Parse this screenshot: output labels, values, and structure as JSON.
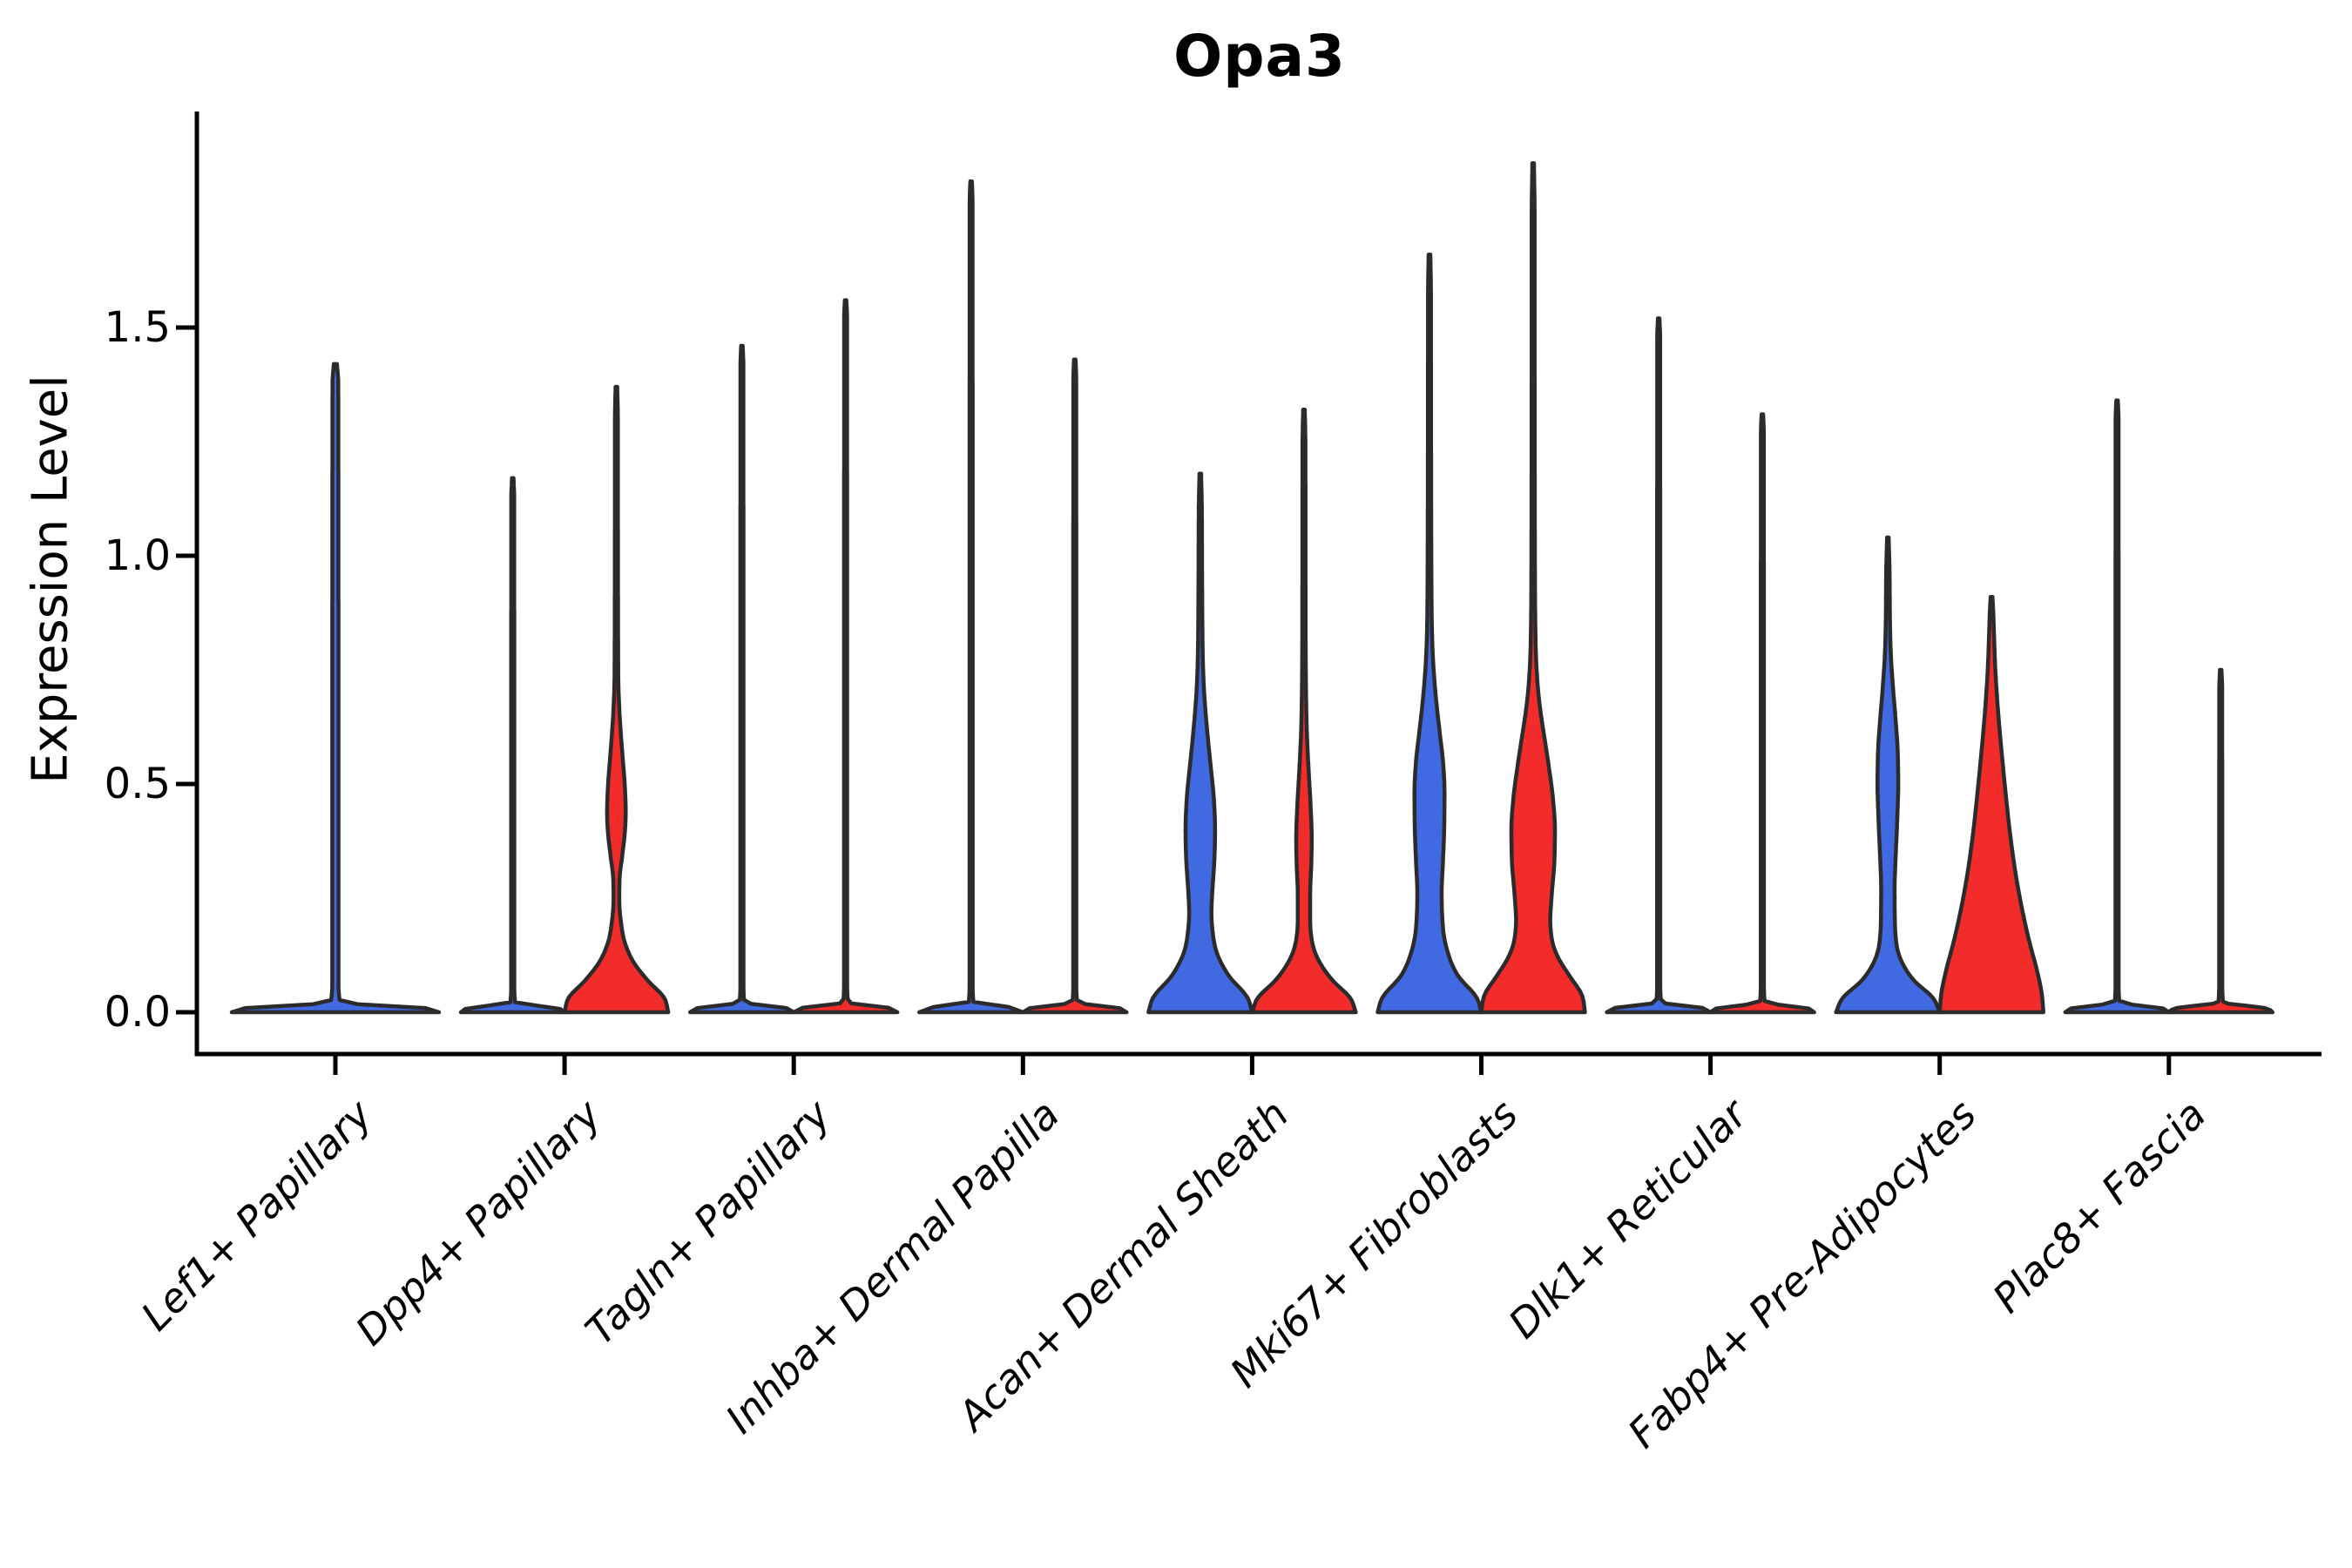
{
  "title": "Opa3",
  "y_axis": {
    "label": "Expression Level",
    "ticks": [
      {
        "label": "0.0",
        "value": 0.0
      },
      {
        "label": "0.5",
        "value": 0.5
      },
      {
        "label": "1.0",
        "value": 1.0
      },
      {
        "label": "1.5",
        "value": 1.5
      }
    ]
  },
  "colors": {
    "blue": "#4169E1",
    "red": "#F22B2B",
    "edge": "#2B2B2B",
    "axis": "#000000",
    "background": "#FFFFFF"
  },
  "chart_data": {
    "type": "violin",
    "title": "Opa3",
    "ylabel": "Expression Level",
    "y_tick_values": [
      0.0,
      0.5,
      1.0,
      1.5
    ],
    "ylim": [
      -0.09,
      1.97
    ],
    "grid": false,
    "legend": "none",
    "split_groups": [
      "blue",
      "red"
    ],
    "categories": [
      "Lef1+ Papillary",
      "Dpp4+ Papillary",
      "Tagln+ Papillary",
      "Inhba+ Dermal Papilla",
      "Acan+ Dermal Sheath",
      "Mki67+ Fibroblasts",
      "Dlk1+ Reticular",
      "Fabp4+ Pre-Adipocytes",
      "Plac8+ Fascia"
    ],
    "violins": [
      {
        "category": "Lef1+ Papillary",
        "category_index": 0,
        "side": "center",
        "group": "blue",
        "max_expression": 1.42,
        "shape": "flat-spike"
      },
      {
        "category": "Dpp4+ Papillary",
        "category_index": 1,
        "side": "left",
        "group": "blue",
        "max_expression": 1.17,
        "shape": "flat-spike"
      },
      {
        "category": "Dpp4+ Papillary",
        "category_index": 1,
        "side": "right",
        "group": "red",
        "max_expression": 1.37,
        "shape": "profile",
        "profile": [
          [
            0,
            1
          ],
          [
            0.03,
            0.93
          ],
          [
            0.07,
            0.6
          ],
          [
            0.11,
            0.33
          ],
          [
            0.15,
            0.17
          ],
          [
            0.2,
            0.085
          ],
          [
            0.25,
            0.055
          ],
          [
            0.29,
            0.06
          ],
          [
            0.34,
            0.11
          ],
          [
            0.39,
            0.16
          ],
          [
            0.44,
            0.18
          ],
          [
            0.5,
            0.16
          ],
          [
            0.56,
            0.12
          ],
          [
            0.62,
            0.08
          ],
          [
            0.68,
            0.05
          ],
          [
            0.75,
            0.035
          ],
          [
            1.0,
            0.03
          ],
          [
            1.3,
            0.028
          ],
          [
            1.37,
            0.016
          ]
        ]
      },
      {
        "category": "Tagln+ Papillary",
        "category_index": 2,
        "side": "left",
        "group": "blue",
        "max_expression": 1.46,
        "shape": "flat-spike"
      },
      {
        "category": "Tagln+ Papillary",
        "category_index": 2,
        "side": "right",
        "group": "red",
        "max_expression": 1.56,
        "shape": "flat-spike"
      },
      {
        "category": "Inhba+ Dermal Papilla",
        "category_index": 3,
        "side": "left",
        "group": "blue",
        "max_expression": 1.82,
        "shape": "flat-spike"
      },
      {
        "category": "Inhba+ Dermal Papilla",
        "category_index": 3,
        "side": "right",
        "group": "red",
        "max_expression": 1.43,
        "shape": "flat-spike"
      },
      {
        "category": "Acan+ Dermal Sheath",
        "category_index": 4,
        "side": "left",
        "group": "blue",
        "max_expression": 1.18,
        "shape": "profile",
        "profile": [
          [
            0,
            1
          ],
          [
            0.03,
            0.92
          ],
          [
            0.08,
            0.55
          ],
          [
            0.13,
            0.32
          ],
          [
            0.18,
            0.235
          ],
          [
            0.22,
            0.215
          ],
          [
            0.27,
            0.235
          ],
          [
            0.33,
            0.27
          ],
          [
            0.4,
            0.285
          ],
          [
            0.47,
            0.26
          ],
          [
            0.54,
            0.2
          ],
          [
            0.62,
            0.13
          ],
          [
            0.7,
            0.075
          ],
          [
            0.8,
            0.045
          ],
          [
            0.95,
            0.035
          ],
          [
            1.1,
            0.03
          ],
          [
            1.18,
            0.016
          ]
        ]
      },
      {
        "category": "Acan+ Dermal Sheath",
        "category_index": 4,
        "side": "right",
        "group": "red",
        "max_expression": 1.32,
        "shape": "profile",
        "profile": [
          [
            0,
            1
          ],
          [
            0.03,
            0.9
          ],
          [
            0.07,
            0.55
          ],
          [
            0.11,
            0.3
          ],
          [
            0.15,
            0.165
          ],
          [
            0.2,
            0.12
          ],
          [
            0.26,
            0.12
          ],
          [
            0.32,
            0.14
          ],
          [
            0.38,
            0.15
          ],
          [
            0.45,
            0.13
          ],
          [
            0.52,
            0.095
          ],
          [
            0.6,
            0.06
          ],
          [
            0.7,
            0.04
          ],
          [
            0.85,
            0.032
          ],
          [
            1.1,
            0.03
          ],
          [
            1.25,
            0.028
          ],
          [
            1.32,
            0.016
          ]
        ]
      },
      {
        "category": "Mki67+ Fibroblasts",
        "category_index": 5,
        "side": "left",
        "group": "blue",
        "max_expression": 1.66,
        "shape": "profile",
        "profile": [
          [
            0,
            1
          ],
          [
            0.03,
            0.92
          ],
          [
            0.08,
            0.55
          ],
          [
            0.14,
            0.33
          ],
          [
            0.2,
            0.25
          ],
          [
            0.26,
            0.235
          ],
          [
            0.33,
            0.26
          ],
          [
            0.41,
            0.285
          ],
          [
            0.48,
            0.29
          ],
          [
            0.55,
            0.26
          ],
          [
            0.62,
            0.19
          ],
          [
            0.7,
            0.115
          ],
          [
            0.78,
            0.065
          ],
          [
            0.88,
            0.042
          ],
          [
            1.05,
            0.034
          ],
          [
            1.35,
            0.03
          ],
          [
            1.58,
            0.028
          ],
          [
            1.66,
            0.016
          ]
        ]
      },
      {
        "category": "Mki67+ Fibroblasts",
        "category_index": 5,
        "side": "right",
        "group": "red",
        "max_expression": 1.86,
        "shape": "profile",
        "profile": [
          [
            0,
            1
          ],
          [
            0.035,
            0.95
          ],
          [
            0.08,
            0.7
          ],
          [
            0.12,
            0.48
          ],
          [
            0.16,
            0.36
          ],
          [
            0.2,
            0.33
          ],
          [
            0.26,
            0.36
          ],
          [
            0.33,
            0.41
          ],
          [
            0.4,
            0.42
          ],
          [
            0.47,
            0.38
          ],
          [
            0.54,
            0.3
          ],
          [
            0.6,
            0.22
          ],
          [
            0.66,
            0.14
          ],
          [
            0.72,
            0.085
          ],
          [
            0.8,
            0.05
          ],
          [
            0.95,
            0.035
          ],
          [
            1.3,
            0.03
          ],
          [
            1.75,
            0.028
          ],
          [
            1.86,
            0.016
          ]
        ]
      },
      {
        "category": "Dlk1+ Reticular",
        "category_index": 6,
        "side": "left",
        "group": "blue",
        "max_expression": 1.52,
        "shape": "flat-spike"
      },
      {
        "category": "Dlk1+ Reticular",
        "category_index": 6,
        "side": "right",
        "group": "red",
        "max_expression": 1.31,
        "shape": "flat-spike"
      },
      {
        "category": "Fabp4+ Pre-Adipocytes",
        "category_index": 7,
        "side": "left",
        "group": "blue",
        "max_expression": 1.04,
        "shape": "profile",
        "profile": [
          [
            0,
            1
          ],
          [
            0.03,
            0.88
          ],
          [
            0.07,
            0.5
          ],
          [
            0.11,
            0.27
          ],
          [
            0.15,
            0.165
          ],
          [
            0.2,
            0.135
          ],
          [
            0.27,
            0.13
          ],
          [
            0.34,
            0.15
          ],
          [
            0.42,
            0.18
          ],
          [
            0.5,
            0.2
          ],
          [
            0.57,
            0.19
          ],
          [
            0.64,
            0.15
          ],
          [
            0.71,
            0.1
          ],
          [
            0.78,
            0.06
          ],
          [
            0.86,
            0.04
          ],
          [
            0.97,
            0.032
          ],
          [
            1.04,
            0.016
          ]
        ]
      },
      {
        "category": "Fabp4+ Pre-Adipocytes",
        "category_index": 7,
        "side": "right",
        "group": "red",
        "max_expression": 0.91,
        "shape": "profile",
        "profile": [
          [
            0,
            1
          ],
          [
            0.04,
            0.97
          ],
          [
            0.09,
            0.88
          ],
          [
            0.15,
            0.74
          ],
          [
            0.22,
            0.6
          ],
          [
            0.3,
            0.47
          ],
          [
            0.38,
            0.37
          ],
          [
            0.46,
            0.29
          ],
          [
            0.54,
            0.22
          ],
          [
            0.62,
            0.155
          ],
          [
            0.7,
            0.1
          ],
          [
            0.78,
            0.062
          ],
          [
            0.84,
            0.045
          ],
          [
            0.88,
            0.032
          ],
          [
            0.91,
            0.018
          ]
        ]
      },
      {
        "category": "Plac8+ Fascia",
        "category_index": 8,
        "side": "left",
        "group": "blue",
        "max_expression": 1.34,
        "shape": "flat-spike"
      },
      {
        "category": "Plac8+ Fascia",
        "category_index": 8,
        "side": "right",
        "group": "red",
        "max_expression": 0.75,
        "shape": "flat-spike"
      }
    ]
  }
}
